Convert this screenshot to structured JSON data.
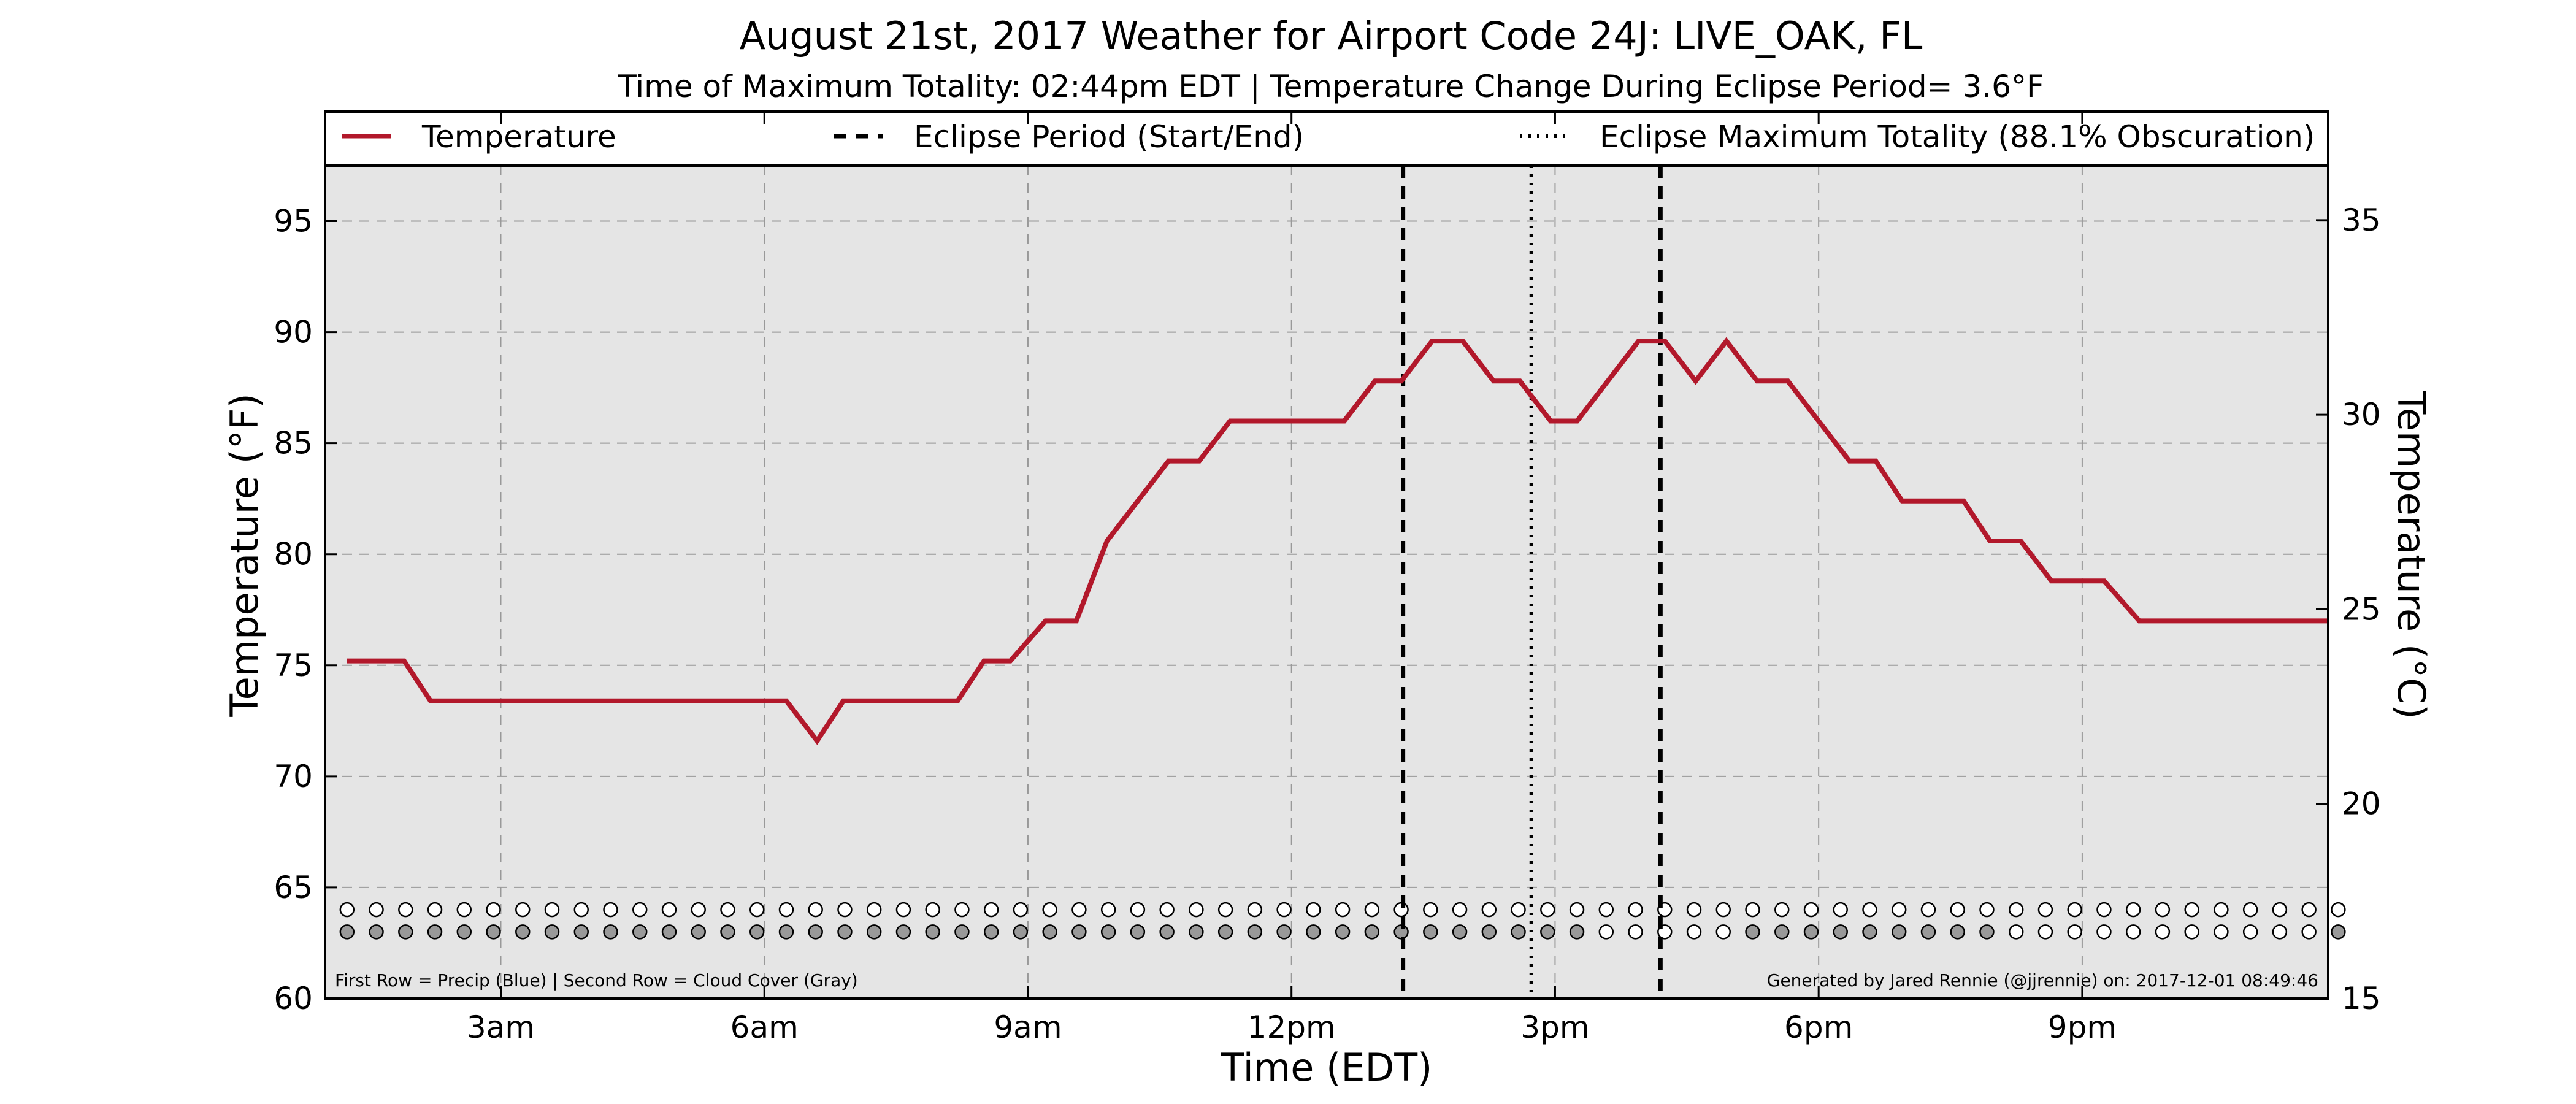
{
  "chart_data": {
    "type": "line",
    "title": "August 21st, 2017 Weather for Airport Code 24J: LIVE_OAK, FL",
    "subtitle": "Time of Maximum Totality: 02:44pm EDT | Temperature Change During Eclipse Period= 3.6°F",
    "xlabel": "Time (EDT)",
    "ylabel_left": "Temperature (°F)",
    "ylabel_right": "Temperature (°C)",
    "xlim_hours": [
      1,
      23.8
    ],
    "ylim_f": [
      60,
      97.5
    ],
    "ylim_c": [
      15,
      36.4
    ],
    "x_ticks": [
      {
        "hour": 3,
        "label": "3am"
      },
      {
        "hour": 6,
        "label": "6am"
      },
      {
        "hour": 9,
        "label": "9am"
      },
      {
        "hour": 12,
        "label": "12pm"
      },
      {
        "hour": 15,
        "label": "3pm"
      },
      {
        "hour": 18,
        "label": "6pm"
      },
      {
        "hour": 21,
        "label": "9pm"
      }
    ],
    "y_ticks_f": [
      60,
      65,
      70,
      75,
      80,
      85,
      90,
      95
    ],
    "y_ticks_c": [
      15,
      20,
      25,
      30,
      35
    ],
    "grid": true,
    "legend": {
      "position": "top",
      "entries": [
        {
          "label": "Temperature",
          "style": "solid",
          "color": "#b2182b"
        },
        {
          "label": "Eclipse Period (Start/End)",
          "style": "dashed",
          "color": "#000000"
        },
        {
          "label": "Eclipse Maximum Totality (88.1% Obscuration)",
          "style": "dotted",
          "color": "#000000"
        }
      ]
    },
    "series": [
      {
        "name": "Temperature",
        "color": "#b2182b",
        "points": [
          [
            1.25,
            75.2
          ],
          [
            1.9,
            75.2
          ],
          [
            2.2,
            73.4
          ],
          [
            6.25,
            73.4
          ],
          [
            6.6,
            71.6
          ],
          [
            6.9,
            73.4
          ],
          [
            8.2,
            73.4
          ],
          [
            8.5,
            75.2
          ],
          [
            8.8,
            75.2
          ],
          [
            9.2,
            77.0
          ],
          [
            9.55,
            77.0
          ],
          [
            9.9,
            80.6
          ],
          [
            10.6,
            84.2
          ],
          [
            10.95,
            84.2
          ],
          [
            11.3,
            86.0
          ],
          [
            12.6,
            86.0
          ],
          [
            12.95,
            87.8
          ],
          [
            13.25,
            87.8
          ],
          [
            13.6,
            89.6
          ],
          [
            13.95,
            89.6
          ],
          [
            14.3,
            87.8
          ],
          [
            14.6,
            87.8
          ],
          [
            14.95,
            86.0
          ],
          [
            15.25,
            86.0
          ],
          [
            15.95,
            89.6
          ],
          [
            16.25,
            89.6
          ],
          [
            16.6,
            87.8
          ],
          [
            16.95,
            89.6
          ],
          [
            17.3,
            87.8
          ],
          [
            17.65,
            87.8
          ],
          [
            18.35,
            84.2
          ],
          [
            18.65,
            84.2
          ],
          [
            18.95,
            82.4
          ],
          [
            19.65,
            82.4
          ],
          [
            19.95,
            80.6
          ],
          [
            20.3,
            80.6
          ],
          [
            20.65,
            78.8
          ],
          [
            21.25,
            78.8
          ],
          [
            21.65,
            77.0
          ],
          [
            23.8,
            77.0
          ]
        ]
      }
    ],
    "eclipse_start_hour": 13.27,
    "eclipse_end_hour": 16.2,
    "eclipse_max_hour": 14.73,
    "precip_row_f": 64.0,
    "cloud_row_f": 63.0,
    "marker_hours_start": 1.25,
    "marker_hours_step": 0.3333,
    "marker_count": 69,
    "precip": [
      0,
      0,
      0,
      0,
      0,
      0,
      0,
      0,
      0,
      0,
      0,
      0,
      0,
      0,
      0,
      0,
      0,
      0,
      0,
      0,
      0,
      0,
      0,
      0,
      0,
      0,
      0,
      0,
      0,
      0,
      0,
      0,
      0,
      0,
      0,
      0,
      0,
      0,
      0,
      0,
      0,
      0,
      0,
      0,
      0,
      0,
      0,
      0,
      0,
      0,
      0,
      0,
      0,
      0,
      0,
      0,
      0,
      0,
      0,
      0,
      0,
      0,
      0,
      0,
      0,
      0,
      0,
      0,
      0
    ],
    "cloud_cover": [
      1,
      1,
      1,
      1,
      1,
      1,
      1,
      1,
      1,
      1,
      1,
      1,
      1,
      1,
      1,
      1,
      1,
      1,
      1,
      1,
      1,
      1,
      1,
      1,
      1,
      1,
      1,
      1,
      1,
      1,
      1,
      1,
      1,
      1,
      1,
      1,
      1,
      1,
      1,
      1,
      1,
      1,
      1,
      0,
      0,
      0,
      0,
      0,
      1,
      1,
      1,
      1,
      1,
      1,
      1,
      1,
      1,
      0,
      0,
      0,
      0,
      0,
      0,
      0,
      0,
      0,
      0,
      0,
      1
    ],
    "cloud_color": "#999999",
    "clear_color": "#ffffff",
    "plot_bg": "#e5e5e5",
    "note_left": "First Row = Precip (Blue) | Second Row = Cloud Cover (Gray)",
    "note_right": "Generated by Jared Rennie (@jjrennie) on: 2017-12-01 08:49:46"
  }
}
